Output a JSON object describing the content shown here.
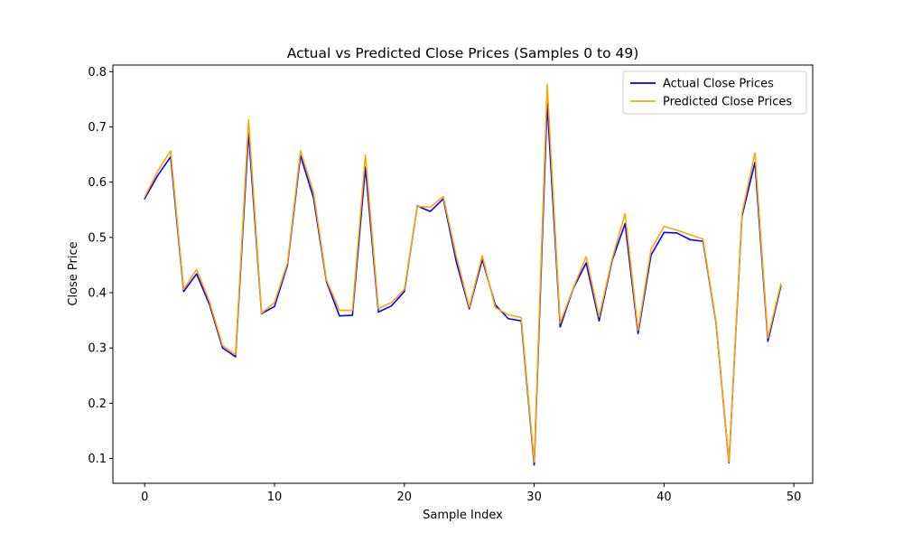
{
  "chart_data": {
    "type": "line",
    "title": "Actual vs Predicted Close Prices (Samples 0 to 49)",
    "xlabel": "Sample Index",
    "ylabel": "Close Price",
    "xlim": [
      -2.45,
      51.45
    ],
    "ylim": [
      0.055,
      0.812
    ],
    "xticks": [
      0,
      10,
      20,
      30,
      40,
      50
    ],
    "yticks": [
      0.1,
      0.2,
      0.3,
      0.4,
      0.5,
      0.6,
      0.7,
      0.8
    ],
    "grid": false,
    "legend_position": "top-right",
    "x": [
      0,
      1,
      2,
      3,
      4,
      5,
      6,
      7,
      8,
      9,
      10,
      11,
      12,
      13,
      14,
      15,
      16,
      17,
      18,
      19,
      20,
      21,
      22,
      23,
      24,
      25,
      26,
      27,
      28,
      29,
      30,
      31,
      32,
      33,
      34,
      35,
      36,
      37,
      38,
      39,
      40,
      41,
      42,
      43,
      44,
      45,
      46,
      47,
      48,
      49
    ],
    "series": [
      {
        "name": "Actual Close Prices",
        "color": "#0000ff",
        "values": [
          0.57,
          0.612,
          0.646,
          0.402,
          0.434,
          0.378,
          0.3,
          0.284,
          0.69,
          0.362,
          0.375,
          0.45,
          0.648,
          0.572,
          0.42,
          0.358,
          0.359,
          0.627,
          0.365,
          0.376,
          0.402,
          0.557,
          0.547,
          0.57,
          0.456,
          0.371,
          0.46,
          0.378,
          0.353,
          0.349,
          0.088,
          0.743,
          0.338,
          0.407,
          0.454,
          0.349,
          0.458,
          0.525,
          0.326,
          0.468,
          0.509,
          0.508,
          0.496,
          0.493,
          0.346,
          0.092,
          0.538,
          0.636,
          0.312,
          0.412
        ]
      },
      {
        "name": "Predicted Close Prices",
        "color": "#ffa500",
        "values": [
          0.573,
          0.62,
          0.657,
          0.406,
          0.442,
          0.383,
          0.304,
          0.288,
          0.713,
          0.363,
          0.382,
          0.454,
          0.657,
          0.582,
          0.423,
          0.368,
          0.368,
          0.649,
          0.371,
          0.382,
          0.406,
          0.556,
          0.555,
          0.574,
          0.466,
          0.374,
          0.467,
          0.373,
          0.36,
          0.355,
          0.094,
          0.777,
          0.345,
          0.408,
          0.465,
          0.356,
          0.461,
          0.543,
          0.332,
          0.478,
          0.52,
          0.513,
          0.505,
          0.497,
          0.348,
          0.094,
          0.543,
          0.653,
          0.318,
          0.416
        ]
      }
    ]
  }
}
